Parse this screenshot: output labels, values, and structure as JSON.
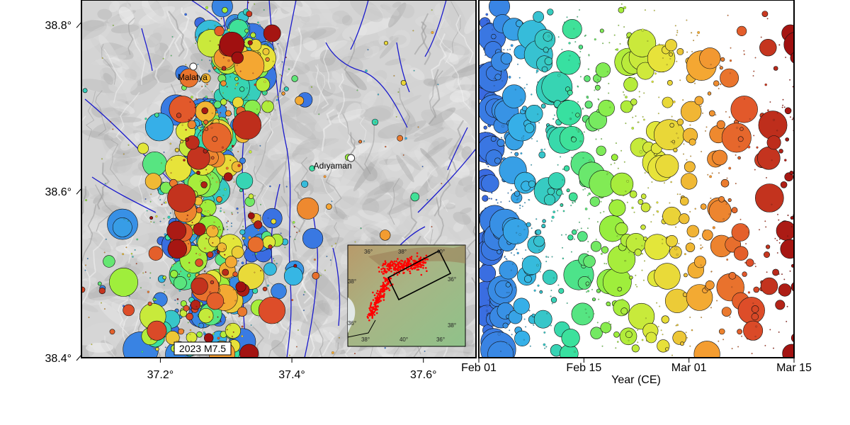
{
  "chart_data": [
    {
      "type": "scatter",
      "subtype": "map",
      "x_ticks": [
        37.2,
        37.4,
        37.6
      ],
      "x_tick_labels": [
        "37.2°",
        "37.4°",
        "37.6°"
      ],
      "y_ticks": [
        38.4,
        38.6,
        38.8
      ],
      "y_tick_labels": [
        "38.4°",
        "38.6°",
        "38.8°"
      ],
      "xlim": [
        37.08,
        37.68
      ],
      "ylim": [
        38.4,
        38.83
      ],
      "background": "shaded relief (gray)",
      "fault_color": "#1a1acc",
      "cities": [
        {
          "name": "Malatya",
          "lon": 37.25,
          "lat": 38.75
        },
        {
          "name": "Adıyaman",
          "lon": 37.49,
          "lat": 38.64
        }
      ],
      "annotation": {
        "text": "2023 M7.5",
        "lon": 37.185,
        "lat": 38.41
      },
      "inset": {
        "tick_labels": [
          "36°",
          "38°",
          "40°",
          "38°",
          "36°",
          "36°",
          "38°",
          "40°",
          "36°",
          "38°"
        ],
        "point_color": "#ff0000",
        "box_color": "#000000"
      }
    },
    {
      "type": "scatter",
      "xlabel": "Year (CE)",
      "x_tick_labels": [
        "Feb 01",
        "Feb 15",
        "Mar 01",
        "Mar 15"
      ],
      "x_ticks": [
        "2023-02-01",
        "2023-02-15",
        "2023-03-01",
        "2023-03-15"
      ],
      "xlim": [
        "2023-02-01",
        "2023-03-15"
      ],
      "ylim": [
        38.4,
        38.83
      ],
      "y_shared_with_map": true,
      "color_encoding": "time, blue (early) → cyan → green → yellow → orange → dark red (late)",
      "size_encoding": "magnitude",
      "colormap": [
        "#3b5fe0",
        "#36b3e8",
        "#38e0a0",
        "#9aef3c",
        "#e6e63a",
        "#f5a332",
        "#e0502a",
        "#a01010"
      ]
    }
  ]
}
